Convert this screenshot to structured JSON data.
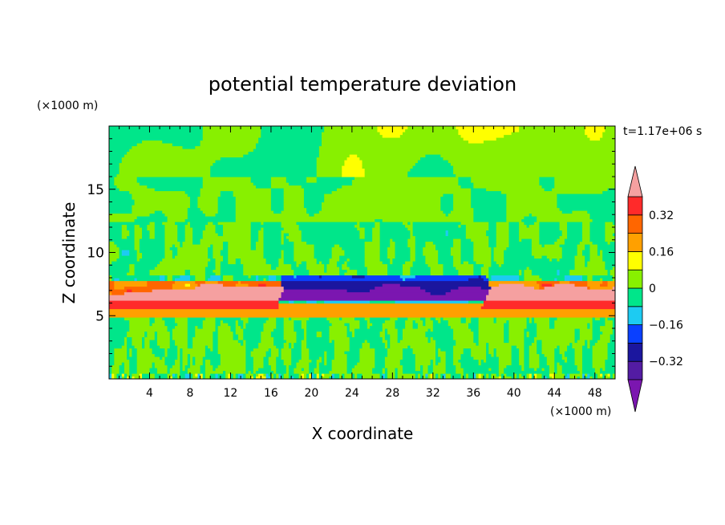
{
  "chart_data": {
    "type": "heatmap",
    "title": "potential temperature deviation",
    "xlabel": "X coordinate",
    "ylabel": "Z coordinate",
    "x_unit": "(×1000 m)",
    "y_unit": "(×1000 m)",
    "time_label": "t=1.17e+06 s",
    "xlim": [
      0,
      50
    ],
    "ylim": [
      0,
      20
    ],
    "x_ticks": [
      4,
      8,
      12,
      16,
      20,
      24,
      28,
      32,
      36,
      40,
      44,
      48
    ],
    "y_ticks": [
      5,
      10,
      15
    ],
    "x_tick_labels": [
      "4",
      "8",
      "12",
      "16",
      "20",
      "24",
      "28",
      "32",
      "36",
      "40",
      "44",
      "48"
    ],
    "y_tick_labels": [
      "5",
      "10",
      "15"
    ],
    "colorbar": {
      "levels": [
        -0.4,
        -0.32,
        -0.24,
        -0.16,
        -0.08,
        0,
        0.08,
        0.16,
        0.24,
        0.32,
        0.4
      ],
      "label_values": [
        "0.32",
        "0.16",
        "0",
        "−0.16",
        "−0.32"
      ],
      "label_levels": [
        0.32,
        0.16,
        0,
        -0.16,
        -0.32
      ],
      "colors": [
        "#7b16b0",
        "#531ca3",
        "#1b169e",
        "#0a40ff",
        "#1dcbf2",
        "#00e68a",
        "#88f000",
        "#ffff00",
        "#ffa000",
        "#ff6600",
        "#ff2a2a",
        "#f5a0a0"
      ],
      "extend": "both"
    },
    "field_description": "stable layer near z=5-7 km: warm anomaly (>0.4) at x<16 and x>38, cold anomaly (<-0.4) in middle x=17-37; noisy convective small-amplitude field below 5 km and above 8 km"
  }
}
